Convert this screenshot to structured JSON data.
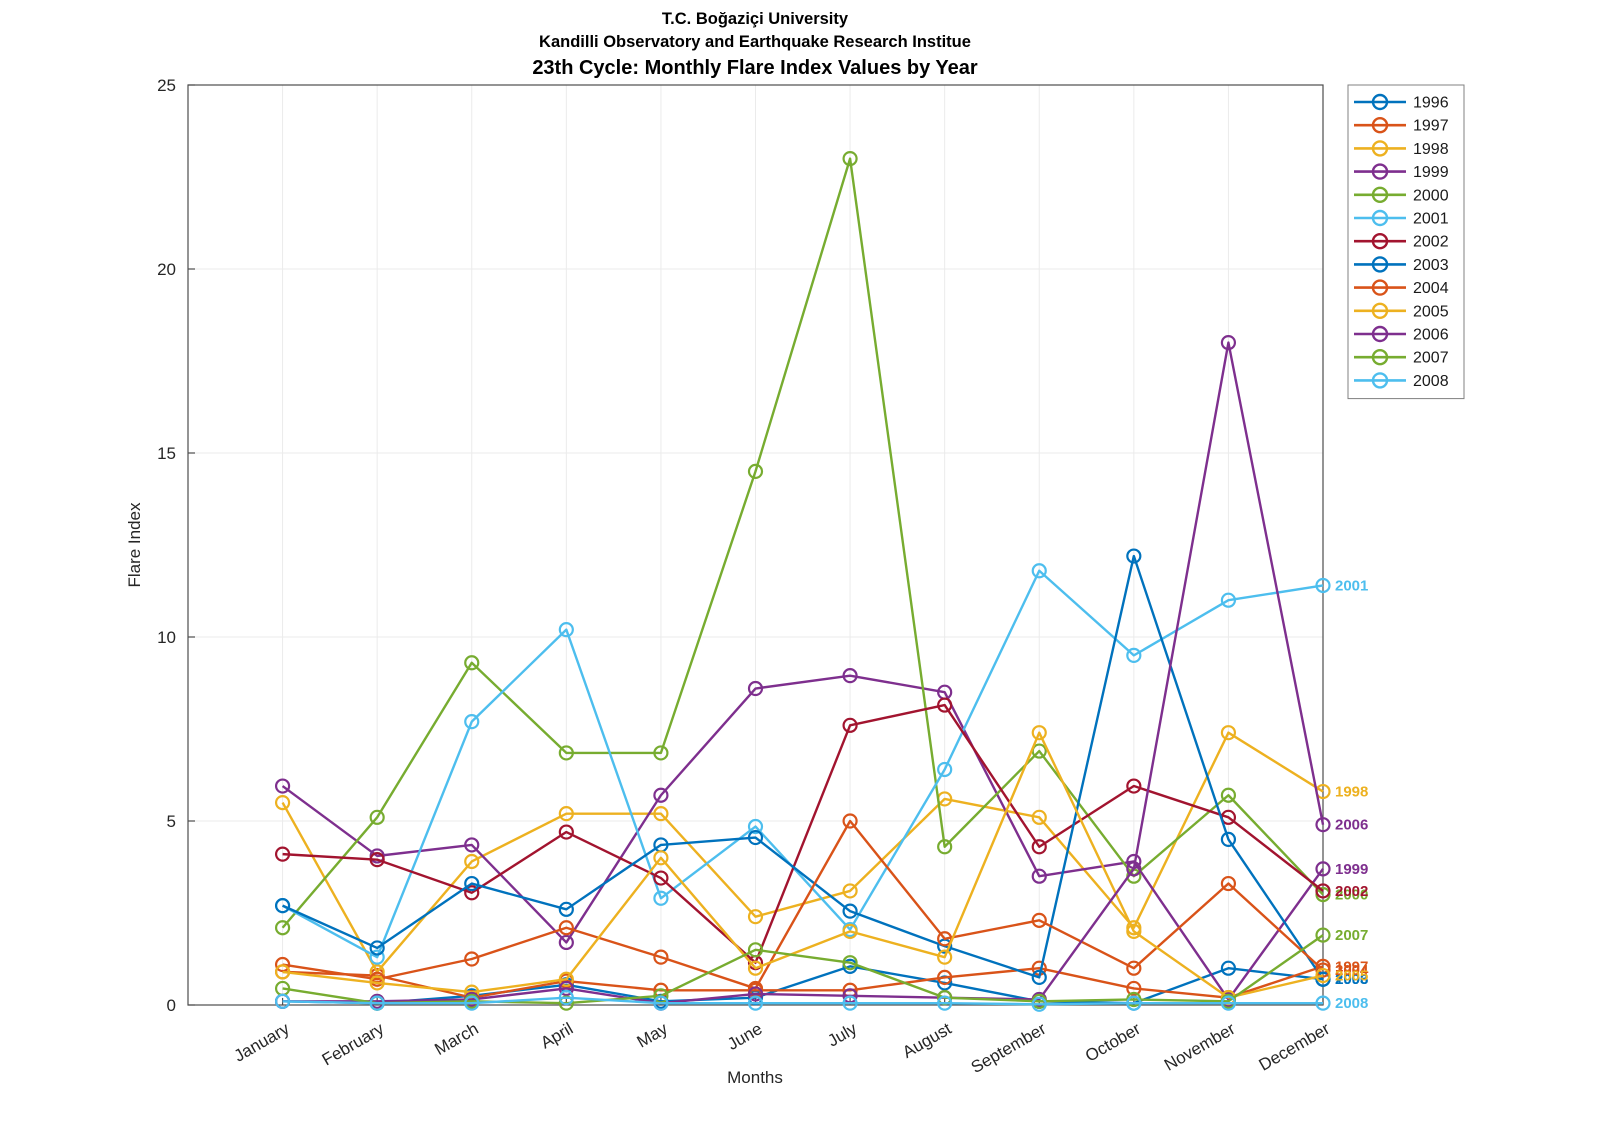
{
  "header": {
    "title_line1": "T.C. Boğaziçi University",
    "title_line2": "Kandilli Observatory and Earthquake Research Institue",
    "title_line3": "23th Cycle: Monthly Flare Index Values by Year"
  },
  "axes": {
    "xlabel": "Months",
    "ylabel": "Flare Index"
  },
  "chart_data": {
    "type": "line",
    "title": "23th Cycle: Monthly Flare Index Values by Year",
    "subtitle_lines": [
      "T.C. Boğaziçi University",
      "Kandilli Observatory and Earthquake Research Institue"
    ],
    "xlabel": "Months",
    "ylabel": "Flare Index",
    "ylim": [
      0,
      25
    ],
    "yticks": [
      0,
      5,
      10,
      15,
      20,
      25
    ],
    "grid": true,
    "marker": "open-circle",
    "legend_position": "top-right-outside",
    "end_labels": true,
    "categories": [
      "January",
      "February",
      "March",
      "April",
      "May",
      "June",
      "July",
      "August",
      "September",
      "October",
      "November",
      "December"
    ],
    "series": [
      {
        "name": "1996",
        "color": "#0072BD",
        "values": [
          0.1,
          0.05,
          0.25,
          0.55,
          0.1,
          0.2,
          1.05,
          0.6,
          0.1,
          0.05,
          1.0,
          0.7
        ]
      },
      {
        "name": "1997",
        "color": "#D95319",
        "values": [
          0.9,
          0.8,
          0.2,
          0.65,
          0.4,
          0.4,
          0.4,
          0.75,
          1.0,
          0.45,
          0.2,
          1.05
        ]
      },
      {
        "name": "1998",
        "color": "#EDB120",
        "values": [
          5.5,
          0.9,
          3.9,
          5.2,
          5.2,
          2.4,
          3.1,
          5.6,
          5.1,
          2.1,
          7.4,
          5.8
        ]
      },
      {
        "name": "1999",
        "color": "#7E2F8E",
        "values": [
          5.95,
          4.05,
          4.35,
          1.7,
          5.7,
          8.6,
          8.95,
          8.5,
          3.5,
          3.9,
          0.15,
          3.7
        ]
      },
      {
        "name": "2000",
        "color": "#77AC30",
        "values": [
          2.1,
          5.1,
          9.3,
          6.85,
          6.85,
          14.5,
          23.0,
          4.3,
          6.9,
          3.5,
          5.7,
          3.0
        ]
      },
      {
        "name": "2001",
        "color": "#4DBEEE",
        "values": [
          2.7,
          1.3,
          7.7,
          10.2,
          2.9,
          4.85,
          2.05,
          6.4,
          11.8,
          9.5,
          11.0,
          11.4
        ]
      },
      {
        "name": "2002",
        "color": "#A2142F",
        "values": [
          4.1,
          3.95,
          3.05,
          4.7,
          3.45,
          1.15,
          7.6,
          8.15,
          4.3,
          5.95,
          5.1,
          3.1
        ]
      },
      {
        "name": "2003",
        "color": "#0072BD",
        "values": [
          2.7,
          1.55,
          3.3,
          2.6,
          4.35,
          4.55,
          2.55,
          1.6,
          0.75,
          12.2,
          4.5,
          0.7
        ]
      },
      {
        "name": "2004",
        "color": "#D95319",
        "values": [
          1.1,
          0.7,
          1.25,
          2.1,
          1.3,
          0.45,
          5.0,
          1.8,
          2.3,
          1.0,
          3.3,
          0.95
        ]
      },
      {
        "name": "2005",
        "color": "#EDB120",
        "values": [
          0.9,
          0.6,
          0.35,
          0.7,
          4.0,
          1.0,
          2.0,
          1.3,
          7.4,
          2.0,
          0.2,
          0.8
        ]
      },
      {
        "name": "2006",
        "color": "#7E2F8E",
        "values": [
          0.1,
          0.1,
          0.15,
          0.45,
          0.05,
          0.3,
          0.25,
          0.2,
          0.15,
          3.7,
          18.0,
          4.9
        ]
      },
      {
        "name": "2007",
        "color": "#77AC30",
        "values": [
          0.45,
          0.05,
          0.1,
          0.05,
          0.25,
          1.5,
          1.15,
          0.2,
          0.1,
          0.15,
          0.1,
          1.9
        ]
      },
      {
        "name": "2008",
        "color": "#4DBEEE",
        "values": [
          0.1,
          0.05,
          0.05,
          0.2,
          0.05,
          0.05,
          0.05,
          0.05,
          0.02,
          0.05,
          0.05,
          0.05
        ]
      }
    ]
  },
  "style": {
    "grid_color": "#ebebeb",
    "axis_color": "#4d4d4d",
    "tick_label_color": "#262626",
    "title_color": "#000000",
    "legend_border_color": "#808080",
    "background": "#ffffff"
  }
}
